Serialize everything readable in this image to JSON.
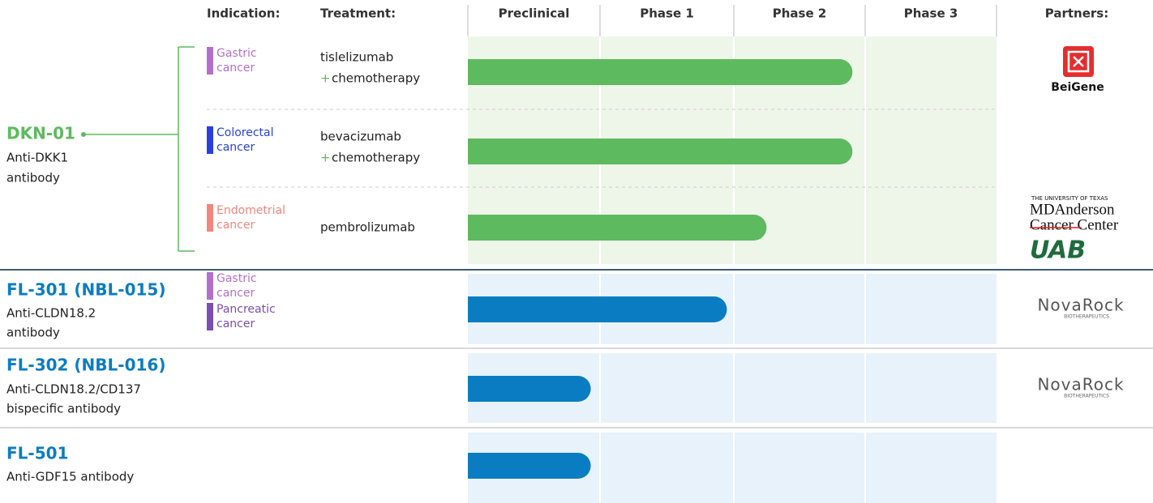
{
  "headers": {
    "indication": "Indication:",
    "treatment": "Treatment:",
    "stages": [
      "Preclinical",
      "Phase 1",
      "Phase 2",
      "Phase 3"
    ],
    "partners": "Partners:"
  },
  "programs": [
    {
      "name": "DKN-01",
      "description": [
        "Anti-DKK1",
        "antibody"
      ],
      "color": "#5dba5f",
      "indications": [
        {
          "label": [
            "Gastric",
            "cancer"
          ],
          "color": "#b36fc9"
        },
        {
          "label": [
            "Colorectal",
            "cancer"
          ],
          "color": "#2a3fe0"
        },
        {
          "label": [
            "Endometrial",
            "cancer"
          ],
          "color": "#f0867c"
        }
      ],
      "rows": [
        {
          "treatment": [
            "tislelizumab",
            "chemotherapy"
          ],
          "combo": "+",
          "progress": 2.91
        },
        {
          "treatment": [
            "bevacizumab",
            "chemotherapy"
          ],
          "combo": "+",
          "progress": 2.91
        },
        {
          "treatment": [
            "pembrolizumab"
          ],
          "progress": 2.26
        }
      ]
    },
    {
      "name": "FL-301 (NBL-015)",
      "description": [
        "Anti-CLDN18.2",
        "antibody"
      ],
      "color": "#0a7dc2",
      "indications": [
        {
          "label": [
            "Gastric",
            "cancer"
          ],
          "color": "#b36fc9"
        },
        {
          "label": [
            "Pancreatic",
            "cancer"
          ],
          "color": "#7b4fb0"
        }
      ],
      "rows": [
        {
          "progress": 1.96
        }
      ]
    },
    {
      "name": "FL-302 (NBL-016)",
      "description": [
        "Anti-CLDN18.2/CD137",
        "bispecific antibody"
      ],
      "color": "#0a7dc2",
      "indications": [],
      "rows": [
        {
          "progress": 0.93
        }
      ]
    },
    {
      "name": "FL-501",
      "description": [
        "Anti-GDF15 antibody"
      ],
      "color": "#0a7dc2",
      "indications": [],
      "rows": [
        {
          "progress": 0.93
        }
      ]
    }
  ],
  "partners": {
    "beigene": "BeiGene",
    "mda_top": "THE UNIVERSITY OF TEXAS",
    "mda_name": "MDAnderson",
    "mda_sub": "Cancer Center",
    "uab": "UAB",
    "novarock": [
      "NovaRock",
      "NovaRock"
    ],
    "novarock_sub": [
      "BIOTHERAPEUTICS",
      "BIOTHERAPEUTICS"
    ]
  }
}
